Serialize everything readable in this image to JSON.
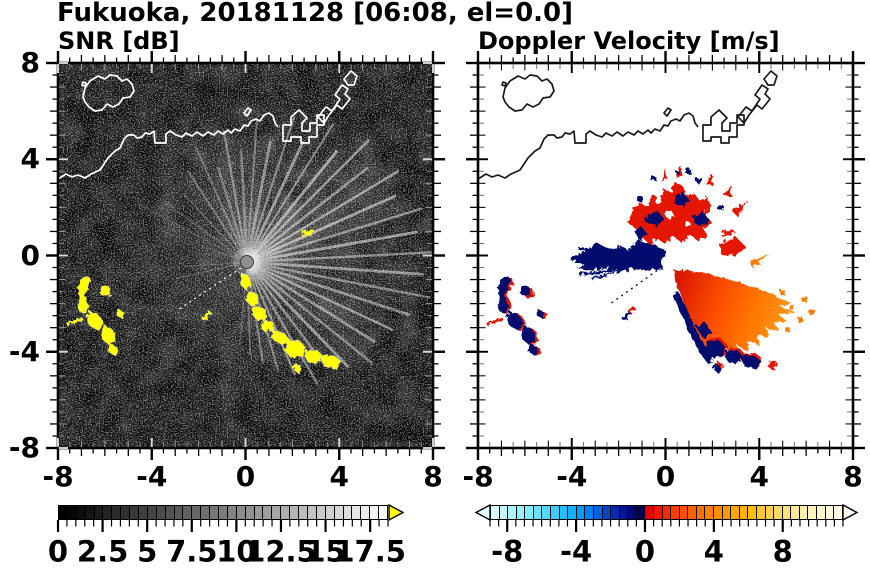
{
  "header": {
    "title": "Fukuoka, 20181128 [06:08, el=0.0]"
  },
  "panels": {
    "snr": {
      "title": "SNR [dB]"
    },
    "doppler": {
      "title": "Doppler Velocity [m/s]"
    }
  },
  "axes": {
    "x_tick_labels": [
      "-8",
      "-4",
      "0",
      "4",
      "8"
    ],
    "y_tick_labels": [
      "8",
      "4",
      "0",
      "-4",
      "-8"
    ],
    "range": [
      -8,
      8
    ],
    "minor_step": 0.5,
    "major_step": 4
  },
  "palette": {
    "coast_snr": "#ffffff",
    "coast_dop": "#1a1a1a",
    "snr_clutter": "#ffff00",
    "vel_navy": "#050f6e",
    "vel_red": "#e41300",
    "vel_orange": "#ff7a00",
    "snr_over_arrow": "#ffff00",
    "vel_under_arrow": "#e6feff",
    "vel_over_arrow": "#fffdec",
    "snr_bg": "#000000",
    "dop_bg": "#ffffff"
  },
  "chart_data": [
    {
      "type": "heatmap",
      "title": "SNR [dB]",
      "xlim": [
        -8,
        8
      ],
      "ylim": [
        -8,
        8
      ],
      "x_ticks": [
        -8,
        -4,
        0,
        4,
        8
      ],
      "y_ticks": [
        8,
        4,
        0,
        -4,
        -8
      ],
      "grid": false,
      "colorbar": {
        "min": 0,
        "max": 18.5,
        "step": 0.5,
        "tick_values": [
          0,
          2.5,
          5,
          7.5,
          10,
          12.5,
          15,
          17.5
        ],
        "tick_labels": [
          "0",
          "2.5",
          "5",
          "7.5",
          "10",
          "12.5",
          "15",
          "17.5"
        ],
        "ramp": [
          "#000000",
          "#f4f4f4"
        ],
        "over_color": "#ffff00"
      },
      "features": [
        "radar site at origin with gray center disk",
        "bright radial beam streaks fanning N-NE-E-SE",
        "speckled black noise background",
        "yellow high-SNR ground clutter arcs southwest of origin and in a chain running southeast from origin",
        "white coastline with harbor structures along the north"
      ]
    },
    {
      "type": "heatmap",
      "title": "Doppler Velocity [m/s]",
      "xlim": [
        -8,
        8
      ],
      "ylim": [
        -8,
        8
      ],
      "x_ticks": [
        -8,
        -4,
        0,
        4,
        8
      ],
      "y_ticks": [
        8,
        4,
        0,
        -4,
        -8
      ],
      "grid": false,
      "colorbar": {
        "min": -9,
        "max": 11.5,
        "step": 0.5,
        "tick_values": [
          -8,
          -4,
          0,
          4,
          8
        ],
        "tick_labels": [
          "-8",
          "-4",
          "0",
          "4",
          "8"
        ],
        "colors": [
          "#d8fdff",
          "#c2fbff",
          "#abf8ff",
          "#95f3ff",
          "#7eedff",
          "#68e4ff",
          "#51daff",
          "#3bceff",
          "#25c0ff",
          "#10afff",
          "#009bff",
          "#0081f2",
          "#0063e2",
          "#0045cd",
          "#002bb2",
          "#001695",
          "#000878",
          "#00035f",
          "#e60000",
          "#f21500",
          "#fc2a00",
          "#ff3d00",
          "#ff4f00",
          "#ff6000",
          "#ff7000",
          "#ff7f00",
          "#ff8d00",
          "#ff9a00",
          "#ffa600",
          "#ffb200",
          "#ffbd0e",
          "#ffc72b",
          "#ffd147",
          "#ffda62",
          "#ffe27c",
          "#ffe994",
          "#ffefaa",
          "#fff4bd",
          "#fff7cc",
          "#fffad8",
          "#fffce2"
        ]
      },
      "features": [
        "navy (negative / toward-radar) velocities in wedge west and patches north of origin",
        "red-orange (positive / away) velocity fan east-southeast of origin",
        "white hole at radar origin",
        "red+navy clutter echoes southwest and southeast matching SNR clutter",
        "black coastline on white background"
      ]
    }
  ]
}
